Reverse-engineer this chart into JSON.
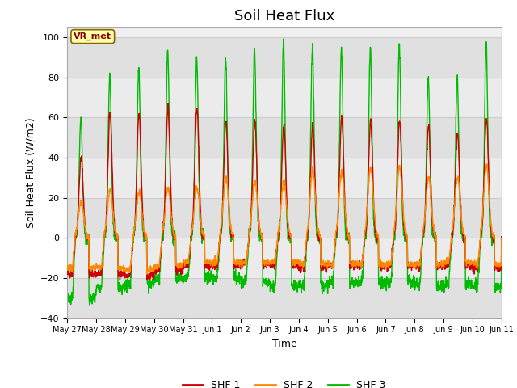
{
  "title": "Soil Heat Flux",
  "ylabel": "Soil Heat Flux (W/m2)",
  "xlabel": "Time",
  "ylim": [
    -40,
    105
  ],
  "yticks": [
    -40,
    -20,
    0,
    20,
    40,
    60,
    80,
    100
  ],
  "legend_labels": [
    "SHF 1",
    "SHF 2",
    "SHF 3"
  ],
  "legend_colors": [
    "#cc0000",
    "#ff8800",
    "#00bb00"
  ],
  "annotation_text": "VR_met",
  "annotation_bg": "#ffffaa",
  "annotation_border": "#886600",
  "bg_color": "#ffffff",
  "plot_bg_color": "#f0f0f0",
  "band_light": "#e8e8e8",
  "band_dark": "#d8d8d8",
  "grid_color": "#cccccc",
  "title_fontsize": 13,
  "label_fontsize": 9,
  "tick_fontsize": 8,
  "line_width": 1.0,
  "xticklabels": [
    "May 27",
    "May 28",
    "May 29",
    "May 30",
    "May 31",
    "Jun 1",
    "Jun 2",
    "Jun 3",
    "Jun 4",
    "Jun 5",
    "Jun 6",
    "Jun 7",
    "Jun 8",
    "Jun 9",
    "Jun 10",
    "Jun 11"
  ]
}
